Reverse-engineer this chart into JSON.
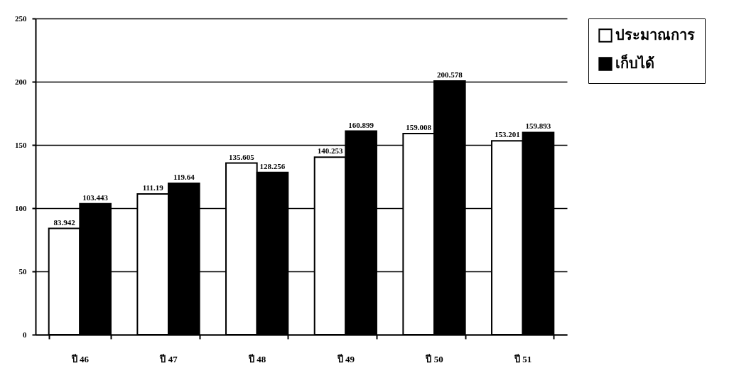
{
  "chart_data": {
    "type": "bar",
    "categories": [
      "ปี 46",
      "ปี 47",
      "ปี 48",
      "ปี 49",
      "ปี 50",
      "ปี 51"
    ],
    "series": [
      {
        "name": "ประมาณการ",
        "color": "#ffffff",
        "values": [
          83.942,
          111.19,
          135.605,
          140.253,
          159.008,
          153.201
        ]
      },
      {
        "name": "เก็บได้",
        "color": "#000000",
        "values": [
          103.443,
          119.64,
          128.256,
          160.899,
          200.578,
          159.893
        ]
      }
    ],
    "ylim": [
      0,
      250
    ],
    "yticks": [
      0,
      50,
      100,
      150,
      200,
      250
    ],
    "grid": "y",
    "legend": "right",
    "data_labels": true
  }
}
